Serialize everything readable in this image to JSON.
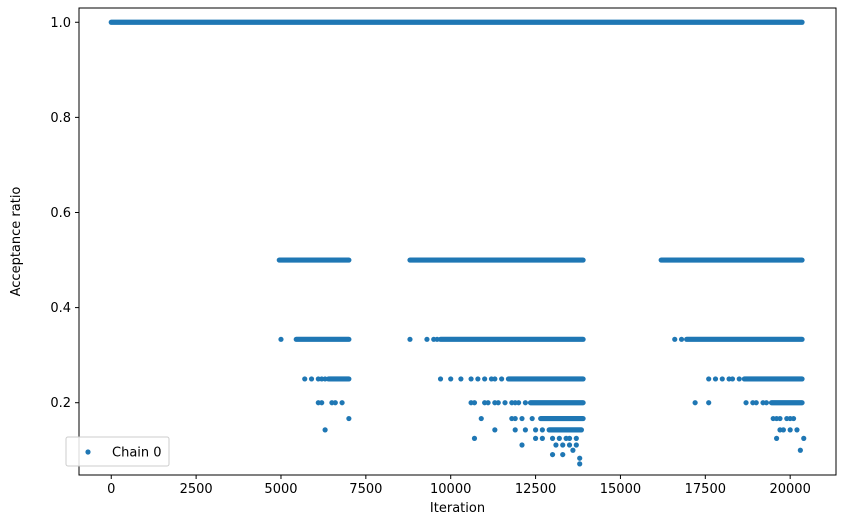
{
  "chart_data": {
    "type": "scatter",
    "title": "",
    "xlabel": "Iteration",
    "ylabel": "Acceptance ratio",
    "xlim": [
      -950,
      21350
    ],
    "ylim": [
      0.048,
      1.03
    ],
    "xticks": [
      0,
      2500,
      5000,
      7500,
      10000,
      12500,
      15000,
      17500,
      20000
    ],
    "yticks": [
      0.2,
      0.4,
      0.6,
      0.8,
      1.0
    ],
    "xtick_labels": [
      "0",
      "2500",
      "5000",
      "7500",
      "10000",
      "12500",
      "15000",
      "17500",
      "20000"
    ],
    "ytick_labels": [
      "0.2",
      "0.4",
      "0.6",
      "0.8",
      "1.0"
    ],
    "grid": false,
    "legend": {
      "placement": "lower-left",
      "entries": [
        "Chain 0"
      ]
    },
    "colors": {
      "series": "#1f77b4"
    },
    "series": [
      {
        "name": "Chain 0",
        "bands": [
          {
            "y": 1.0,
            "segments": [
              [
                0,
                20350
              ]
            ]
          },
          {
            "y": 0.5,
            "segments": [
              [
                4950,
                7000
              ],
              [
                8800,
                13900
              ],
              [
                16200,
                20350
              ]
            ]
          },
          {
            "y": 0.3333,
            "segments": [
              [
                5450,
                7000
              ],
              [
                9700,
                13900
              ],
              [
                16950,
                20350
              ]
            ]
          },
          {
            "y": 0.25,
            "segments": [
              [
                6400,
                7000
              ],
              [
                11700,
                13900
              ],
              [
                18650,
                20350
              ]
            ]
          },
          {
            "y": 0.2,
            "segments": [
              [
                12350,
                13900
              ],
              [
                19450,
                20350
              ]
            ]
          },
          {
            "y": 0.1667,
            "segments": [
              [
                12650,
                13900
              ]
            ]
          },
          {
            "y": 0.1429,
            "segments": [
              [
                12900,
                13850
              ]
            ]
          }
        ],
        "points": [
          [
            5000,
            0.3333
          ],
          [
            5700,
            0.25
          ],
          [
            5900,
            0.25
          ],
          [
            6100,
            0.25
          ],
          [
            6200,
            0.25
          ],
          [
            6300,
            0.25
          ],
          [
            6100,
            0.2
          ],
          [
            6200,
            0.2
          ],
          [
            6500,
            0.2
          ],
          [
            6600,
            0.2
          ],
          [
            6800,
            0.2
          ],
          [
            7000,
            0.1667
          ],
          [
            6300,
            0.1429
          ],
          [
            8800,
            0.3333
          ],
          [
            9300,
            0.3333
          ],
          [
            9500,
            0.3333
          ],
          [
            9600,
            0.3333
          ],
          [
            9700,
            0.25
          ],
          [
            10000,
            0.25
          ],
          [
            10300,
            0.25
          ],
          [
            10600,
            0.25
          ],
          [
            10800,
            0.25
          ],
          [
            11000,
            0.25
          ],
          [
            11200,
            0.25
          ],
          [
            11300,
            0.25
          ],
          [
            11500,
            0.25
          ],
          [
            10600,
            0.2
          ],
          [
            10700,
            0.2
          ],
          [
            11000,
            0.2
          ],
          [
            11100,
            0.2
          ],
          [
            11300,
            0.2
          ],
          [
            11400,
            0.2
          ],
          [
            11600,
            0.2
          ],
          [
            11800,
            0.2
          ],
          [
            11900,
            0.2
          ],
          [
            12000,
            0.2
          ],
          [
            12200,
            0.2
          ],
          [
            10900,
            0.1667
          ],
          [
            11800,
            0.1667
          ],
          [
            11900,
            0.1667
          ],
          [
            12100,
            0.1667
          ],
          [
            12400,
            0.1667
          ],
          [
            11300,
            0.1429
          ],
          [
            11900,
            0.1429
          ],
          [
            12200,
            0.1429
          ],
          [
            12500,
            0.1429
          ],
          [
            12700,
            0.1429
          ],
          [
            12500,
            0.125
          ],
          [
            12700,
            0.125
          ],
          [
            13000,
            0.125
          ],
          [
            13200,
            0.125
          ],
          [
            13400,
            0.125
          ],
          [
            13500,
            0.125
          ],
          [
            13700,
            0.125
          ],
          [
            10700,
            0.125
          ],
          [
            12100,
            0.1111
          ],
          [
            13100,
            0.1111
          ],
          [
            13300,
            0.1111
          ],
          [
            13500,
            0.1111
          ],
          [
            13700,
            0.1111
          ],
          [
            13000,
            0.0909
          ],
          [
            13300,
            0.0909
          ],
          [
            13600,
            0.1
          ],
          [
            13800,
            0.0833
          ],
          [
            13800,
            0.0714
          ],
          [
            16600,
            0.3333
          ],
          [
            16800,
            0.3333
          ],
          [
            17600,
            0.25
          ],
          [
            17800,
            0.25
          ],
          [
            18000,
            0.25
          ],
          [
            18200,
            0.25
          ],
          [
            18300,
            0.25
          ],
          [
            18500,
            0.25
          ],
          [
            17200,
            0.2
          ],
          [
            17600,
            0.2
          ],
          [
            18700,
            0.2
          ],
          [
            18900,
            0.2
          ],
          [
            19000,
            0.2
          ],
          [
            19200,
            0.2
          ],
          [
            19300,
            0.2
          ],
          [
            19500,
            0.1667
          ],
          [
            19600,
            0.1667
          ],
          [
            19700,
            0.1667
          ],
          [
            19900,
            0.1667
          ],
          [
            20000,
            0.1667
          ],
          [
            20100,
            0.1667
          ],
          [
            19700,
            0.1429
          ],
          [
            19800,
            0.1429
          ],
          [
            20000,
            0.1429
          ],
          [
            20200,
            0.1429
          ],
          [
            19600,
            0.125
          ],
          [
            20400,
            0.125
          ],
          [
            20300,
            0.1
          ]
        ]
      }
    ]
  }
}
